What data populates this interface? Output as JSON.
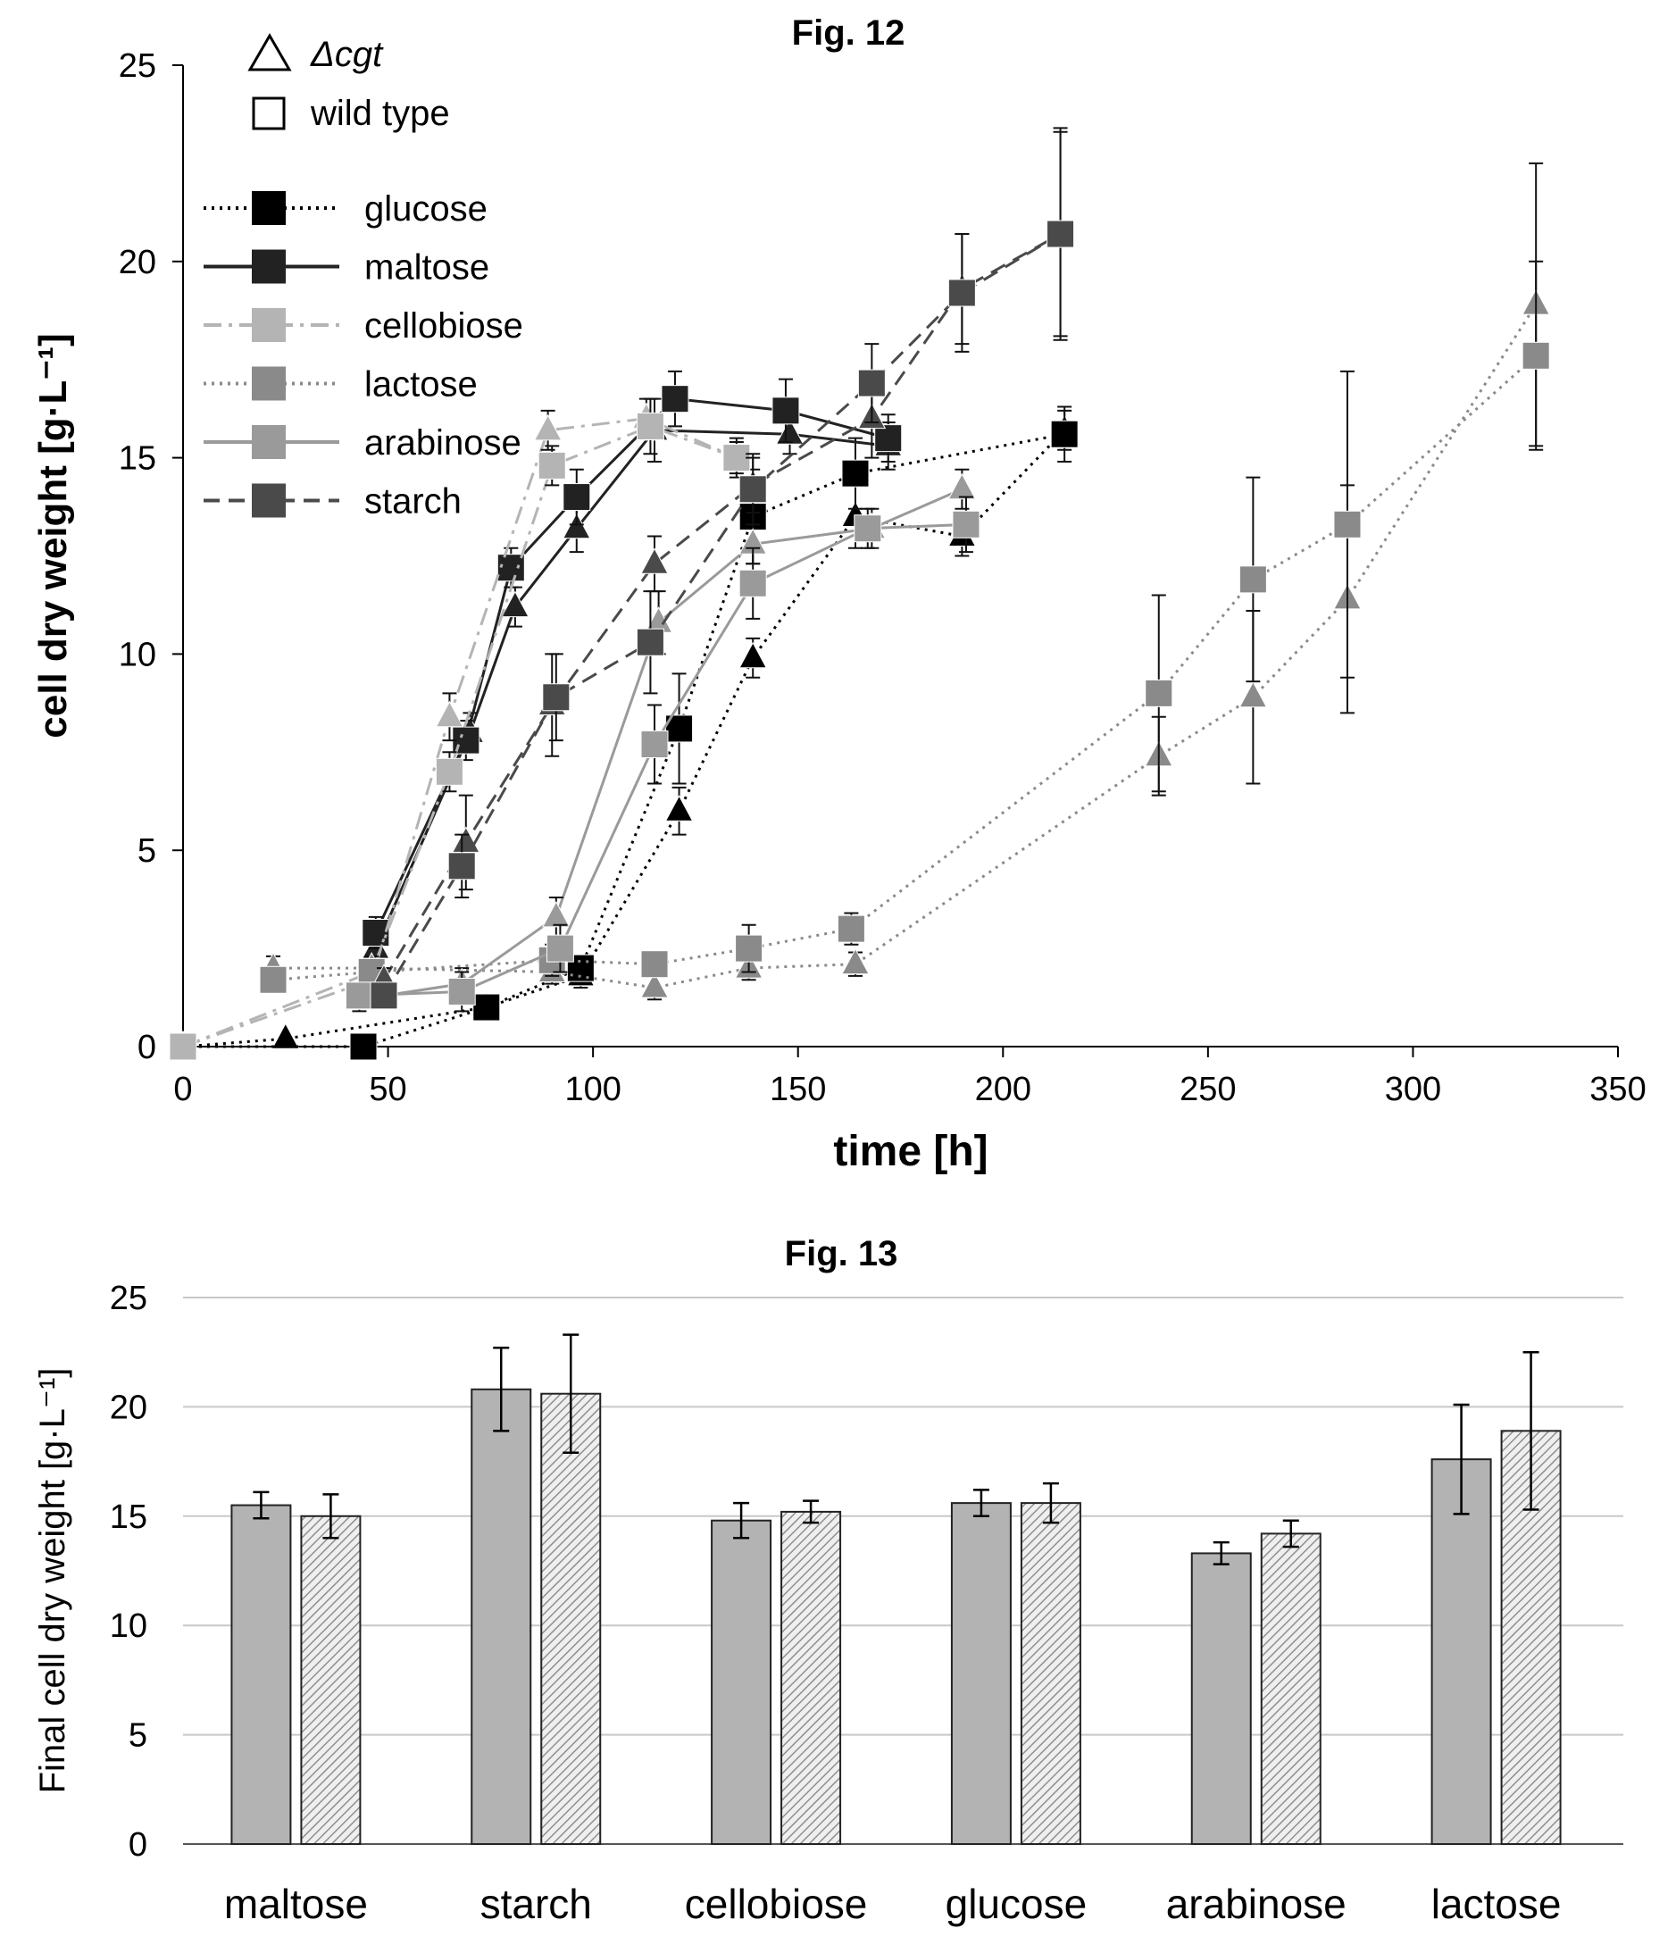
{
  "chart_data": [
    {
      "type": "line",
      "title": "Fig. 12",
      "xlabel": "time [h]",
      "ylabel": "cell dry weight [g·L⁻¹]",
      "xlim": [
        0,
        350
      ],
      "ylim": [
        0,
        25
      ],
      "xticks": [
        "0",
        "50",
        "100",
        "150",
        "200",
        "250",
        "300",
        "350"
      ],
      "yticks": [
        "0",
        "5",
        "10",
        "15",
        "20",
        "25"
      ],
      "strain_legend": [
        {
          "marker": "triangle",
          "label": "Δcgt"
        },
        {
          "marker": "square",
          "label": "wild type"
        }
      ],
      "series": [
        {
          "name": "glucose",
          "style": "dotted",
          "color": "#000000",
          "wild_type": {
            "x": [
              0,
              44,
              74,
              97,
              121,
              139,
              164,
              215
            ],
            "y": [
              0,
              0,
              1.0,
              2.0,
              8.1,
              13.5,
              14.6,
              15.6
            ],
            "err": [
              0,
              0,
              0.3,
              0.3,
              1.4,
              1.2,
              0.9,
              0.7
            ]
          },
          "cgt": {
            "x": [
              0,
              25,
              74,
              97,
              121,
              139,
              164,
              190,
              215
            ],
            "y": [
              0,
              0.2,
              1.0,
              1.8,
              6.0,
              9.9,
              13.5,
              13.0,
              15.7
            ],
            "err": [
              0,
              0,
              0.3,
              0.3,
              0.6,
              0.5,
              0.8,
              0.5,
              0.5
            ]
          }
        },
        {
          "name": "maltose",
          "style": "solid",
          "color": "#222222",
          "wild_type": {
            "x": [
              47,
              69,
              80,
              96,
              120,
              147,
              172
            ],
            "y": [
              2.9,
              7.8,
              12.2,
              14.0,
              16.5,
              16.2,
              15.5
            ],
            "err": [
              0.4,
              0.5,
              0.5,
              0.7,
              0.7,
              0.8,
              0.6
            ]
          },
          "cgt": {
            "x": [
              47,
              70,
              81,
              96,
              115,
              148,
              172
            ],
            "y": [
              2.5,
              8.0,
              11.2,
              13.2,
              15.7,
              15.6,
              15.3
            ],
            "err": [
              0.3,
              0.5,
              0.5,
              0.6,
              0.8,
              0.5,
              0.6
            ]
          }
        },
        {
          "name": "cellobiose",
          "style": "dash-dot",
          "color": "#b4b4b4",
          "wild_type": {
            "x": [
              0,
              46,
              65,
              90,
              114,
              135
            ],
            "y": [
              0,
              1.9,
              7.0,
              14.8,
              15.8,
              15.0
            ],
            "err": [
              0,
              0.3,
              0.5,
              0.5,
              0.7,
              0.5
            ]
          },
          "cgt": {
            "x": [
              0,
              46,
              65,
              89,
              113,
              135
            ],
            "y": [
              0,
              1.7,
              8.4,
              15.7,
              16.0,
              15.0
            ],
            "err": [
              0,
              0.3,
              0.6,
              0.5,
              0.5,
              0.4
            ]
          }
        },
        {
          "name": "lactose",
          "style": "dotted",
          "color": "#8a8a8a",
          "wild_type": {
            "x": [
              22,
              46,
              90,
              115,
              138,
              163,
              238,
              261,
              284,
              330
            ],
            "y": [
              1.7,
              1.9,
              2.2,
              2.1,
              2.5,
              3.0,
              9.0,
              11.9,
              13.3,
              17.6
            ],
            "err": [
              0.3,
              0.3,
              0.4,
              0.3,
              0.6,
              0.4,
              2.5,
              2.6,
              3.9,
              2.4
            ]
          },
          "cgt": {
            "x": [
              22,
              46,
              90,
              115,
              138,
              164,
              238,
              261,
              284,
              330
            ],
            "y": [
              2.0,
              2.0,
              1.9,
              1.5,
              2.0,
              2.1,
              7.4,
              8.9,
              11.4,
              18.9
            ],
            "err": [
              0.3,
              0.3,
              0.3,
              0.3,
              0.3,
              0.3,
              1.0,
              2.2,
              2.9,
              3.6
            ]
          }
        },
        {
          "name": "arabinose",
          "style": "solid",
          "color": "#9a9a9a",
          "wild_type": {
            "x": [
              43,
              68,
              92,
              115,
              139,
              167,
              191
            ],
            "y": [
              1.3,
              1.4,
              2.5,
              7.7,
              11.8,
              13.2,
              13.3
            ],
            "err": [
              0.3,
              0.5,
              0.6,
              1.0,
              0.9,
              0.5,
              0.7
            ]
          },
          "cgt": {
            "x": [
              43,
              68,
              91,
              116,
              139,
              168,
              190
            ],
            "y": [
              1.2,
              1.6,
              3.3,
              10.8,
              12.8,
              13.2,
              14.2
            ],
            "err": [
              0.3,
              0.4,
              0.5,
              0.8,
              0.5,
              0.5,
              0.5
            ]
          }
        },
        {
          "name": "starch",
          "style": "dashed",
          "color": "#4a4a4a",
          "wild_type": {
            "x": [
              49,
              68,
              91,
              114,
              139,
              168,
              190,
              214
            ],
            "y": [
              1.3,
              4.6,
              8.9,
              10.3,
              14.2,
              16.9,
              19.2,
              20.7
            ],
            "err": [
              0.3,
              0.8,
              1.1,
              1.3,
              0.9,
              1.0,
              1.5,
              2.6
            ]
          },
          "cgt": {
            "x": [
              49,
              69,
              90,
              115,
              139,
              168,
              190,
              214
            ],
            "y": [
              1.7,
              5.2,
              8.7,
              12.3,
              14.3,
              16.0,
              19.3,
              20.7
            ],
            "err": [
              0.3,
              1.2,
              1.3,
              0.7,
              0.7,
              1.0,
              1.4,
              2.7
            ]
          }
        }
      ]
    },
    {
      "type": "bar",
      "title": "Fig. 13",
      "xlabel": "",
      "ylabel": "Final cell dry weight  [g·L⁻¹]",
      "ylim": [
        0,
        25
      ],
      "yticks": [
        "0",
        "5",
        "10",
        "15",
        "20",
        "25"
      ],
      "categories": [
        "maltose",
        "starch",
        "cellobiose",
        "glucose",
        "arabinose",
        "lactose"
      ],
      "series": [
        {
          "name": "",
          "pattern": "solid",
          "values": [
            15.5,
            20.8,
            14.8,
            15.6,
            13.3,
            17.6
          ],
          "err": [
            0.6,
            1.9,
            0.8,
            0.6,
            0.5,
            2.5
          ]
        },
        {
          "name": "",
          "pattern": "hatched",
          "values": [
            15.0,
            20.6,
            15.2,
            15.6,
            14.2,
            18.9
          ],
          "err": [
            1.0,
            2.7,
            0.5,
            0.9,
            0.6,
            3.6
          ]
        }
      ]
    }
  ],
  "colors": {
    "bar_fill": "#b3b3b3",
    "bar_hatch": "#8f8f8f",
    "grid": "#c8c8c8"
  }
}
